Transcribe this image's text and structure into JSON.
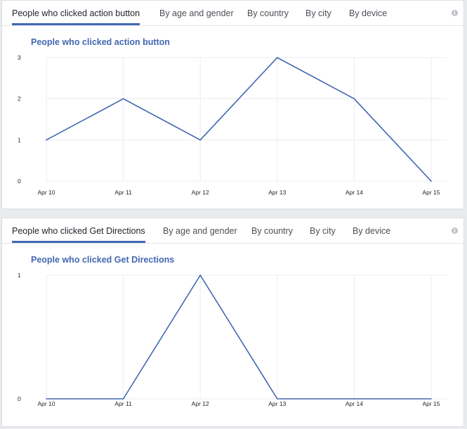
{
  "panels": [
    {
      "tabs": [
        {
          "label": "People who clicked action button",
          "active": true
        },
        {
          "label": "By age and gender",
          "active": false
        },
        {
          "label": "By country",
          "active": false
        },
        {
          "label": "By city",
          "active": false
        },
        {
          "label": "By device",
          "active": false
        }
      ],
      "info_icon": "info-icon",
      "info_glyph": "i"
    },
    {
      "tabs": [
        {
          "label": "People who clicked Get Directions",
          "active": true
        },
        {
          "label": "By age and gender",
          "active": false
        },
        {
          "label": "By country",
          "active": false
        },
        {
          "label": "By city",
          "active": false
        },
        {
          "label": "By device",
          "active": false
        }
      ],
      "info_icon": "info-icon",
      "info_glyph": "i"
    }
  ],
  "colors": {
    "accent": "#4267b2",
    "line": "#4267b2",
    "grid": "#ebedf0"
  },
  "chart_data": [
    {
      "type": "line",
      "title": "People who clicked action button",
      "categories": [
        "Apr 10",
        "Apr 11",
        "Apr 12",
        "Apr 13",
        "Apr 14",
        "Apr 15"
      ],
      "series": [
        {
          "values": [
            1,
            2,
            1,
            3,
            2,
            0
          ]
        }
      ],
      "yticks": [
        0,
        1,
        2,
        3
      ],
      "ylim": [
        0,
        3
      ],
      "grid": true,
      "legend": "none"
    },
    {
      "type": "line",
      "title": "People who clicked Get Directions",
      "categories": [
        "Apr 10",
        "Apr 11",
        "Apr 12",
        "Apr 13",
        "Apr 14",
        "Apr 15"
      ],
      "series": [
        {
          "values": [
            0,
            0,
            1,
            0,
            0,
            0
          ]
        }
      ],
      "yticks": [
        0,
        1
      ],
      "ylim": [
        0,
        1
      ],
      "grid": true,
      "legend": "none"
    }
  ]
}
